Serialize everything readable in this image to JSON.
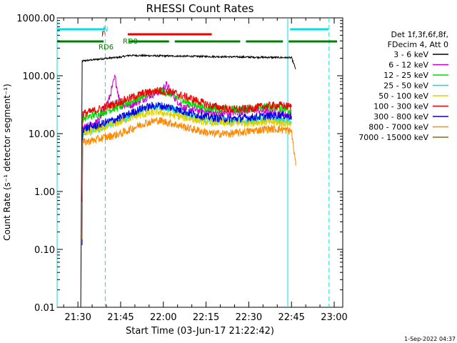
{
  "chart_data": {
    "type": "line",
    "title": "RHESSI Count Rates",
    "xlabel": "Start Time (03-Jun-17 21:22:42)",
    "ylabel": "Count Rate (s⁻¹ detector segment⁻¹)",
    "y_scale": "log",
    "xlim": [
      "21:22:42",
      "23:03:00"
    ],
    "ylim": [
      0.01,
      1000
    ],
    "x_ticks": [
      "21:30",
      "21:45",
      "22:00",
      "22:15",
      "22:30",
      "22:45",
      "23:00"
    ],
    "x_tick_minutes": [
      1290,
      1305,
      1320,
      1335,
      1350,
      1365,
      1380
    ],
    "y_ticks": [
      "0.01",
      "0.10",
      "1.00",
      "10.00",
      "100.00",
      "1000.00"
    ],
    "y_tick_values": [
      0.01,
      0.1,
      1,
      10,
      100,
      1000
    ],
    "legend_header": [
      "Det 1f,3f,6f,8f,",
      "FDecim 4, Att 0"
    ],
    "legend_position": "right",
    "series": [
      {
        "name": "3 - 6 keV",
        "color": "#000000",
        "points": [
          [
            1291,
            0.01
          ],
          [
            1291.5,
            180
          ],
          [
            1300,
            200
          ],
          [
            1305,
            210
          ],
          [
            1308,
            225
          ],
          [
            1320,
            220
          ],
          [
            1335,
            215
          ],
          [
            1350,
            210
          ],
          [
            1365,
            205
          ],
          [
            1366.5,
            130
          ]
        ]
      },
      {
        "name": "6 - 12 keV",
        "color": "#cc00cc",
        "points": [
          [
            1291.5,
            12
          ],
          [
            1297,
            16
          ],
          [
            1301,
            40
          ],
          [
            1303,
            95
          ],
          [
            1305,
            30
          ],
          [
            1309,
            32
          ],
          [
            1315,
            45
          ],
          [
            1319,
            55
          ],
          [
            1321,
            70
          ],
          [
            1324,
            42
          ],
          [
            1327,
            28
          ],
          [
            1333,
            25
          ],
          [
            1340,
            22
          ],
          [
            1347,
            24
          ],
          [
            1352,
            26
          ],
          [
            1358,
            24
          ],
          [
            1365,
            20
          ]
        ]
      },
      {
        "name": "12 - 25 keV",
        "color": "#00dd00",
        "points": [
          [
            1291.5,
            18
          ],
          [
            1297,
            22
          ],
          [
            1305,
            30
          ],
          [
            1313,
            45
          ],
          [
            1318,
            55
          ],
          [
            1322,
            50
          ],
          [
            1328,
            35
          ],
          [
            1335,
            28
          ],
          [
            1343,
            26
          ],
          [
            1350,
            27
          ],
          [
            1356,
            29
          ],
          [
            1361,
            28
          ],
          [
            1365,
            25
          ]
        ]
      },
      {
        "name": "25 - 50 keV",
        "color": "#00e0e0",
        "points": [
          [
            1291.5,
            10
          ],
          [
            1297,
            12
          ],
          [
            1305,
            17
          ],
          [
            1313,
            26
          ],
          [
            1318,
            30
          ],
          [
            1323,
            27
          ],
          [
            1330,
            20
          ],
          [
            1337,
            17
          ],
          [
            1344,
            16
          ],
          [
            1351,
            17
          ],
          [
            1357,
            18
          ],
          [
            1365,
            16
          ]
        ]
      },
      {
        "name": "50 - 100 keV",
        "color": "#e0d000",
        "points": [
          [
            1291.5,
            10
          ],
          [
            1300,
            13
          ],
          [
            1310,
            20
          ],
          [
            1318,
            24
          ],
          [
            1325,
            20
          ],
          [
            1335,
            16
          ],
          [
            1345,
            15
          ],
          [
            1355,
            16
          ],
          [
            1365,
            15
          ]
        ]
      },
      {
        "name": "100 - 300 keV",
        "color": "#ee0000",
        "points": [
          [
            1291.5,
            0.65
          ],
          [
            1291.7,
            22
          ],
          [
            1297,
            26
          ],
          [
            1305,
            36
          ],
          [
            1313,
            50
          ],
          [
            1318,
            55
          ],
          [
            1323,
            52
          ],
          [
            1330,
            40
          ],
          [
            1337,
            30
          ],
          [
            1344,
            26
          ],
          [
            1350,
            27
          ],
          [
            1356,
            30
          ],
          [
            1361,
            31
          ],
          [
            1365,
            29
          ]
        ]
      },
      {
        "name": "300 - 800 keV",
        "color": "#0000dd",
        "points": [
          [
            1291.5,
            0.12
          ],
          [
            1291.7,
            12
          ],
          [
            1297,
            14
          ],
          [
            1305,
            19
          ],
          [
            1313,
            28
          ],
          [
            1318,
            31
          ],
          [
            1323,
            28
          ],
          [
            1330,
            22
          ],
          [
            1337,
            19
          ],
          [
            1344,
            18
          ],
          [
            1350,
            19
          ],
          [
            1356,
            20
          ],
          [
            1361,
            21
          ],
          [
            1365,
            20
          ]
        ]
      },
      {
        "name": "800 - 7000 keV",
        "color": "#ff8800",
        "points": [
          [
            1291.5,
            0.15
          ],
          [
            1291.7,
            7
          ],
          [
            1297,
            8
          ],
          [
            1305,
            10
          ],
          [
            1313,
            15
          ],
          [
            1318,
            17
          ],
          [
            1323,
            15
          ],
          [
            1330,
            12
          ],
          [
            1337,
            10
          ],
          [
            1344,
            10
          ],
          [
            1350,
            11
          ],
          [
            1356,
            12
          ],
          [
            1361,
            12
          ],
          [
            1365,
            11
          ],
          [
            1366.5,
            2.8
          ]
        ]
      },
      {
        "name": "7000 - 15000 keV",
        "color": "#8b6914",
        "points": []
      }
    ],
    "annotations": [
      {
        "text": "N",
        "color": "#00e0e0"
      },
      {
        "text": "F",
        "color": "#ee0000"
      },
      {
        "text": "RD6",
        "color": "#008000"
      },
      {
        "text": "RD0",
        "color": "#008000"
      }
    ],
    "bars": [
      {
        "kind": "N",
        "color": "#00e0e0",
        "row": 1,
        "segments": [
          [
            1282.7,
            1299.5
          ],
          [
            1364.5,
            1378
          ]
        ]
      },
      {
        "kind": "F",
        "color": "#ee0000",
        "row": 2,
        "segments": [
          [
            1307.5,
            1337
          ]
        ]
      },
      {
        "kind": "RD",
        "color": "#008000",
        "row": 3,
        "segments": [
          [
            1282.7,
            1299
          ],
          [
            1308,
            1322
          ],
          [
            1324,
            1347
          ],
          [
            1349,
            1362
          ],
          [
            1364,
            1381
          ]
        ]
      }
    ],
    "vlines": [
      {
        "x": 1282.7,
        "color": "#00e0e0",
        "style": "solid"
      },
      {
        "x": 1299.6,
        "color": "#00e0e0",
        "style": "dashed"
      },
      {
        "x": 1363.7,
        "color": "#00e0e0",
        "style": "solid"
      },
      {
        "x": 1378.2,
        "color": "#00e0e0",
        "style": "dashed"
      }
    ]
  },
  "timestamp": "1-Sep-2022 04:37"
}
